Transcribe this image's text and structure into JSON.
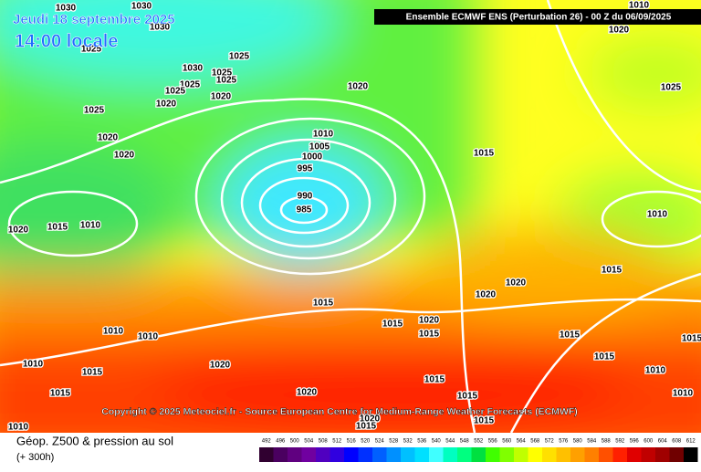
{
  "header": {
    "date": "Jeudi 18 septembre 2025",
    "time": "14:00 locale",
    "model": "Ensemble ECMWF ENS  (Perturbation 26)  -  00 Z du 06/09/2025"
  },
  "copyright": "Copyright © 2025 Meteociel.fr - Source European Centre for Medium-Range Weather Forecasts (ECMWF)",
  "footer": {
    "title": "Géop. Z500 & pression au sol",
    "lead": "(+ 300h)"
  },
  "isobar_labels": [
    1030,
    1030,
    1030,
    1025,
    1025,
    1030,
    1025,
    1025,
    1025,
    1025,
    1020,
    1020,
    1025,
    1020,
    1020,
    1010,
    1025,
    1010,
    1005,
    1000,
    995,
    990,
    985,
    1020,
    1020,
    1015,
    1015,
    1010,
    1020,
    1010,
    1015,
    1020,
    1020,
    1015,
    1015,
    1020,
    1015,
    1010,
    1010,
    1010,
    1015,
    1020,
    1015,
    1015,
    1010,
    1015,
    1015,
    1020,
    1015,
    1015,
    1010,
    1015,
    1020,
    1015,
    1010
  ],
  "scale": {
    "values": [
      492,
      496,
      500,
      504,
      508,
      512,
      516,
      520,
      524,
      528,
      532,
      536,
      540,
      544,
      548,
      552,
      556,
      560,
      564,
      568,
      572,
      576,
      580,
      584,
      588,
      592,
      596,
      600,
      604,
      608,
      612
    ],
    "colors": [
      "#300030",
      "#4a0060",
      "#600080",
      "#7000a0",
      "#5000c0",
      "#3000e0",
      "#0000ff",
      "#0030ff",
      "#0060ff",
      "#0090ff",
      "#00c0ff",
      "#00e0ff",
      "#40ffff",
      "#00ffc0",
      "#00ff80",
      "#00e040",
      "#40ff00",
      "#80ff00",
      "#c0ff00",
      "#ffff00",
      "#ffe000",
      "#ffc000",
      "#ffa000",
      "#ff8000",
      "#ff5000",
      "#ff2000",
      "#e00000",
      "#c00000",
      "#a00000",
      "#700000",
      "#000000"
    ]
  }
}
